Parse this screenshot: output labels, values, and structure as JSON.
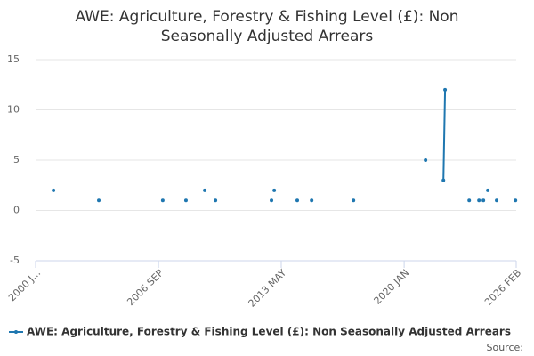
{
  "chart_data": {
    "type": "line",
    "title": "AWE: Agriculture, Forestry & Fishing Level (£): Non Seasonally Adjusted Arrears",
    "x": [
      2000.97,
      null,
      2003.43,
      null,
      2006.9,
      null,
      2008.16,
      null,
      2009.18,
      null,
      2009.76,
      null,
      2012.8,
      null,
      2012.95,
      null,
      2014.2,
      null,
      2014.98,
      null,
      2017.25,
      null,
      2021.16,
      null,
      2022.13,
      2022.22,
      null,
      2023.53,
      null,
      2024.06,
      null,
      2024.3,
      null,
      2024.54,
      null,
      2025.02,
      null,
      2026.04
    ],
    "series": [
      {
        "name": "AWE: Agriculture, Forestry & Fishing Level (£): Non Seasonally Adjusted Arrears",
        "color": "#1f77b0",
        "values": [
          2,
          null,
          1,
          null,
          1,
          null,
          1,
          null,
          2,
          null,
          1,
          null,
          1,
          null,
          2,
          null,
          1,
          null,
          1,
          null,
          1,
          null,
          5,
          null,
          3,
          12,
          null,
          1,
          null,
          1,
          null,
          1,
          null,
          2,
          null,
          1,
          null,
          1
        ]
      }
    ],
    "xlim": [
      2000.0,
      2026.08
    ],
    "xticks": [
      {
        "value": 2000.0,
        "label": "2000 J..."
      },
      {
        "value": 2006.67,
        "label": "2006 SEP"
      },
      {
        "value": 2013.33,
        "label": "2013 MAY"
      },
      {
        "value": 2020.0,
        "label": "2020 JAN"
      },
      {
        "value": 2026.08,
        "label": "2026 FEB"
      }
    ],
    "ylim": [
      -5,
      15
    ],
    "yticks": [
      -5,
      0,
      5,
      10,
      15
    ],
    "grid": true,
    "source": "Source:"
  }
}
